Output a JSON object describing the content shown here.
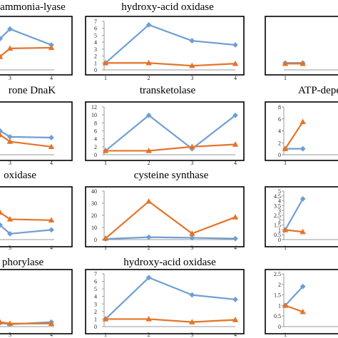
{
  "colors": {
    "blue": "#6f9fd2",
    "orange": "#e57328",
    "frame": "#000000",
    "axis": "#9a9a9a"
  },
  "panels": [
    {
      "id": "r0c0",
      "title": "ammonia-lyase"
    },
    {
      "id": "r0c1",
      "title": "hydroxy-acid oxidase"
    },
    {
      "id": "r0c2",
      "title": ""
    },
    {
      "id": "r1c0",
      "title": "rone DnaK"
    },
    {
      "id": "r1c1",
      "title": "transketolase"
    },
    {
      "id": "r1c2",
      "title": "ATP-depe"
    },
    {
      "id": "r2c0",
      "title": "oxidase"
    },
    {
      "id": "r2c1",
      "title": "cysteine synthase"
    },
    {
      "id": "r2c2",
      "title": ""
    },
    {
      "id": "r3c0",
      "title": "phorylase"
    },
    {
      "id": "r3c1",
      "title": "hydroxy-acid oxidase"
    },
    {
      "id": "r3c2",
      "title": ""
    }
  ],
  "chart_data": [
    {
      "type": "line",
      "title": "ammonia-lyase",
      "x": [
        2,
        3,
        4
      ],
      "ylim": [
        0,
        7
      ],
      "yticks": [],
      "xticks": [
        "3",
        "4"
      ],
      "series": [
        {
          "color": "blue",
          "values": [
            4.5,
            5.9,
            3.6
          ]
        },
        {
          "color": "orange",
          "values": [
            1.9,
            3.1,
            3.2
          ]
        }
      ]
    },
    {
      "type": "line",
      "title": "hydroxy-acid oxidase",
      "x": [
        1,
        2,
        3,
        4
      ],
      "ylim": [
        0,
        7
      ],
      "yticks": [
        "0",
        "1",
        "2",
        "3",
        "4",
        "5",
        "6",
        "7"
      ],
      "xticks": [
        "1",
        "2",
        "3",
        "4"
      ],
      "series": [
        {
          "color": "blue",
          "values": [
            1.0,
            6.5,
            4.2,
            3.6
          ]
        },
        {
          "color": "orange",
          "values": [
            1.0,
            1.0,
            0.6,
            0.9
          ]
        }
      ]
    },
    {
      "type": "line",
      "title": "",
      "x": [
        1,
        2
      ],
      "ylim": [
        0,
        7
      ],
      "yticks": [],
      "xticks": [
        "1"
      ],
      "series": [
        {
          "color": "blue",
          "values": [
            1.0,
            1.0
          ]
        },
        {
          "color": "orange",
          "values": [
            0.9,
            0.9
          ]
        }
      ]
    },
    {
      "type": "line",
      "title": "rone DnaK",
      "x": [
        2,
        3,
        4
      ],
      "ylim": [
        0,
        12
      ],
      "yticks": [],
      "xticks": [
        "3",
        "4"
      ],
      "series": [
        {
          "color": "blue",
          "values": [
            6.0,
            4.5,
            4.3
          ]
        },
        {
          "color": "orange",
          "values": [
            5.0,
            3.3,
            2.0
          ]
        }
      ]
    },
    {
      "type": "line",
      "title": "transketolase",
      "x": [
        1,
        2,
        3,
        4
      ],
      "ylim": [
        0,
        12
      ],
      "yticks": [
        "0",
        "2",
        "4",
        "6",
        "8",
        "10",
        "12"
      ],
      "xticks": [
        "1",
        "2",
        "3",
        "4"
      ],
      "series": [
        {
          "color": "blue",
          "values": [
            1.0,
            9.9,
            1.5,
            9.9
          ]
        },
        {
          "color": "orange",
          "values": [
            1.0,
            1.0,
            2.0,
            2.6
          ]
        }
      ]
    },
    {
      "type": "line",
      "title": "ATP-depe",
      "x": [
        1,
        2
      ],
      "ylim": [
        0,
        8
      ],
      "yticks": [
        "0",
        "2",
        "4",
        "6",
        "8"
      ],
      "xticks": [
        "1"
      ],
      "series": [
        {
          "color": "blue",
          "values": [
            1.0,
            1.0
          ]
        },
        {
          "color": "orange",
          "values": [
            1.0,
            5.5
          ]
        }
      ]
    },
    {
      "type": "line",
      "title": "oxidase",
      "x": [
        2,
        3,
        4
      ],
      "ylim": [
        0,
        5
      ],
      "yticks": [],
      "xticks": [
        "3",
        "4"
      ],
      "series": [
        {
          "color": "blue",
          "values": [
            1.5,
            0.6,
            1.0
          ]
        },
        {
          "color": "orange",
          "values": [
            2.8,
            2.1,
            2.0
          ]
        }
      ]
    },
    {
      "type": "line",
      "title": "cysteine synthase",
      "x": [
        1,
        2,
        3,
        4
      ],
      "ylim": [
        0,
        40
      ],
      "yticks": [
        "0",
        "10",
        "20",
        "30",
        "40"
      ],
      "xticks": [
        "1",
        "2",
        "3",
        "4"
      ],
      "series": [
        {
          "color": "blue",
          "values": [
            0.5,
            2.0,
            1.5,
            0.8
          ]
        },
        {
          "color": "orange",
          "values": [
            1.0,
            31.5,
            5.0,
            18.5
          ]
        }
      ]
    },
    {
      "type": "line",
      "title": "",
      "x": [
        1,
        2
      ],
      "ylim": [
        0,
        5
      ],
      "yticks": [
        "0",
        "0.5",
        "1",
        "1.5",
        "2",
        "2.5",
        "3",
        "3.5",
        "4",
        "4.5",
        "5"
      ],
      "xticks": [
        "1"
      ],
      "series": [
        {
          "color": "blue",
          "values": [
            1.0,
            4.2
          ]
        },
        {
          "color": "orange",
          "values": [
            1.0,
            0.8
          ]
        }
      ]
    },
    {
      "type": "line",
      "title": "phorylase",
      "x": [
        2,
        3,
        4
      ],
      "ylim": [
        0,
        7
      ],
      "yticks": [],
      "xticks": [
        "3",
        "4"
      ],
      "series": [
        {
          "color": "blue",
          "values": [
            0.5,
            0.3,
            0.6
          ]
        },
        {
          "color": "orange",
          "values": [
            0.6,
            0.4,
            0.4
          ]
        }
      ]
    },
    {
      "type": "line",
      "title": "hydroxy-acid oxidase",
      "x": [
        1,
        2,
        3,
        4
      ],
      "ylim": [
        0,
        7
      ],
      "yticks": [
        "0",
        "1",
        "2",
        "3",
        "4",
        "5",
        "6",
        "7"
      ],
      "xticks": [
        "1",
        "2",
        "3",
        "4"
      ],
      "series": [
        {
          "color": "blue",
          "values": [
            1.0,
            6.5,
            4.2,
            3.6
          ]
        },
        {
          "color": "orange",
          "values": [
            1.0,
            1.0,
            0.6,
            0.9
          ]
        }
      ]
    },
    {
      "type": "line",
      "title": "",
      "x": [
        1,
        2
      ],
      "ylim": [
        0,
        2.5
      ],
      "yticks": [
        "0",
        "0.5",
        "1",
        "1.5",
        "2",
        "2.5"
      ],
      "xticks": [
        "1"
      ],
      "series": [
        {
          "color": "blue",
          "values": [
            1.0,
            1.9
          ]
        },
        {
          "color": "orange",
          "values": [
            1.0,
            0.7
          ]
        }
      ]
    }
  ]
}
